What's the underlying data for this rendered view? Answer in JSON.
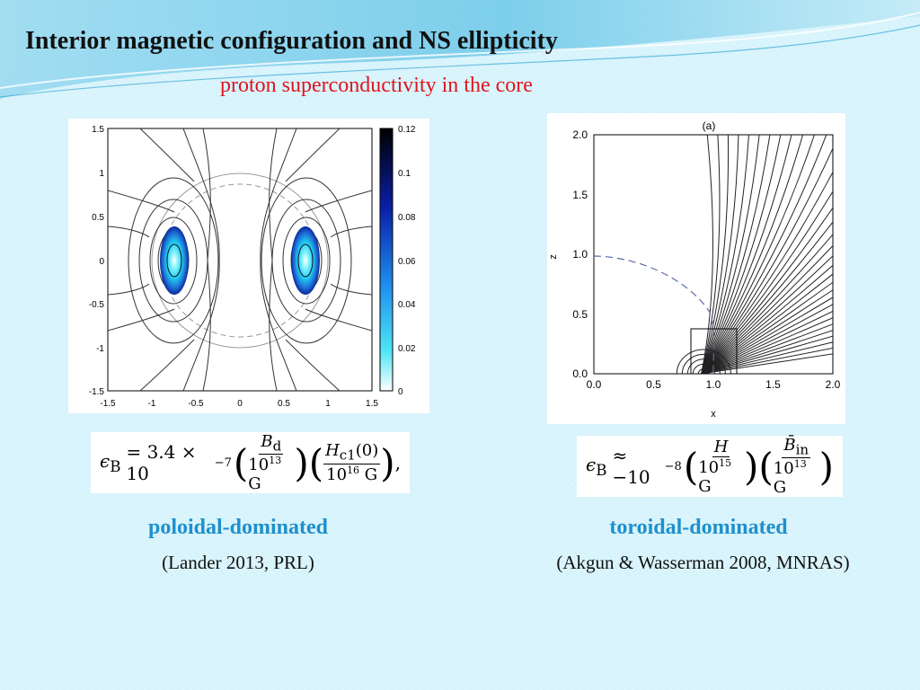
{
  "slide": {
    "title": "Interior magnetic configuration and NS ellipticity",
    "subtitle": "proton superconductivity in the core",
    "colors": {
      "subtitle": "#e0141e",
      "accent_label": "#1e90cc",
      "background": "#d7f3fb"
    }
  },
  "left_figure": {
    "y_ticks": [
      "1.5",
      "1",
      "0.5",
      "0",
      "-0.5",
      "-1",
      "-1.5"
    ],
    "x_ticks": [
      "-1.5",
      "-1",
      "-0.5",
      "0",
      "0.5",
      "1",
      "1.5"
    ],
    "colorbar_ticks": [
      "0.12",
      "0.1",
      "0.08",
      "0.06",
      "0.04",
      "0.02",
      "0"
    ]
  },
  "right_figure": {
    "panel_label": "(a)",
    "xlabel": "x",
    "ylabel": "z",
    "x_ticks": [
      "0.0",
      "0.5",
      "1.0",
      "1.5",
      "2.0"
    ],
    "y_ticks": [
      "2.0",
      "1.5",
      "1.0",
      "0.5",
      "0.0"
    ]
  },
  "formulas": {
    "left": {
      "lhs": "ϵ",
      "lhs_sub": "B",
      "eq": "= 3.4 × 10",
      "eq_exp": "−7",
      "f1_num": "B",
      "f1_num_sub": "d",
      "f1_den": "10",
      "f1_den_exp": "13",
      "f1_den_unit": " G",
      "f2_num": "H",
      "f2_num_sub": "c1",
      "f2_num_arg": "(0)",
      "f2_den": "10",
      "f2_den_exp": "16",
      "f2_den_unit": " G",
      "trail": ","
    },
    "right": {
      "lhs": "ϵ",
      "lhs_sub": "B",
      "eq": "≈ −10",
      "eq_exp": "−8",
      "f1_num": "H",
      "f1_den": "10",
      "f1_den_exp": "15",
      "f1_den_unit": " G",
      "f2_num": "B̄",
      "f2_num_sub": "in",
      "f2_den": "10",
      "f2_den_exp": "13",
      "f2_den_unit": " G"
    }
  },
  "labels": {
    "left_type": "poloidal-dominated",
    "left_ref": "(Lander 2013, PRL)",
    "right_type": "toroidal-dominated",
    "right_ref": "(Akgun & Wasserman 2008, MNRAS)"
  }
}
